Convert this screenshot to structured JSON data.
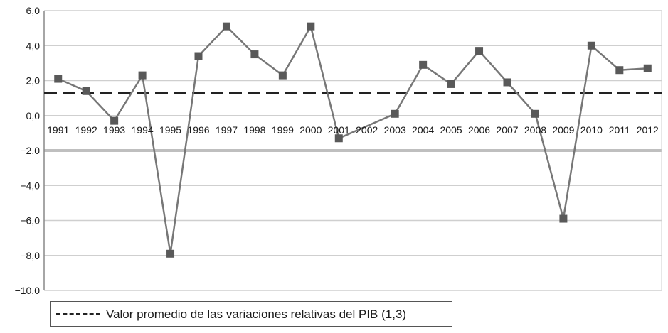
{
  "chart_data": {
    "type": "line",
    "x": [
      "1991",
      "1992",
      "1993",
      "1994",
      "1995",
      "1996",
      "1997",
      "1998",
      "1999",
      "2000",
      "2001",
      "2002",
      "2003",
      "2004",
      "2005",
      "2006",
      "2007",
      "2008",
      "2009",
      "2010",
      "2011",
      "2012"
    ],
    "series": [
      {
        "values": [
          2.1,
          1.4,
          -0.3,
          2.3,
          -7.9,
          3.4,
          5.1,
          3.5,
          2.3,
          5.1,
          -1.3,
          null,
          0.1,
          2.9,
          1.8,
          3.7,
          1.9,
          0.1,
          -5.9,
          4.0,
          2.6,
          2.7
        ],
        "color": "#777777",
        "marker_color": "#595959",
        "marker": "square"
      }
    ],
    "reference_line": {
      "value": 1.3,
      "label": "Valor promedio de las variaciones relativas del PIB (1,3)",
      "style": "dashed",
      "color": "#222222"
    },
    "yticks": [
      "6,0",
      "4,0",
      "2,0",
      "0,0",
      "−2,0",
      "−4,0",
      "−6,0",
      "−8,0",
      "−10,0"
    ],
    "ytick_values": [
      6,
      4,
      2,
      0,
      -2,
      -4,
      -6,
      -8,
      -10
    ],
    "ylim": [
      -10,
      6
    ],
    "title": "",
    "xlabel": "",
    "ylabel": "",
    "grid": true,
    "legend_position": "bottom-left"
  }
}
